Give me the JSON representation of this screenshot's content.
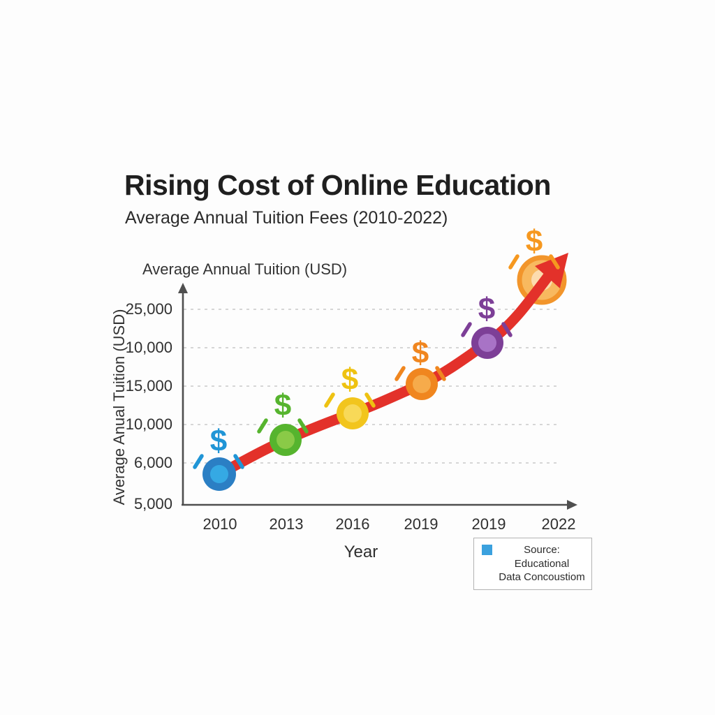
{
  "header": {
    "title": "Rising Cost of Online Education",
    "subtitle": "Average Annual Tuition Fees (2010-2022)"
  },
  "chart_data": {
    "type": "line",
    "title": "Rising Cost of Online Education",
    "subtitle": "Average Annual Tuition Fees (2010-2022)",
    "top_axis_label": "Average Annual Tuition (USD)",
    "ylabel": "Average Anual Tuition (USD)",
    "xlabel": "Year",
    "x_tick_labels": [
      "2010",
      "2013",
      "2016",
      "2019",
      "2019",
      "2022"
    ],
    "y_tick_labels_top_to_bottom": [
      "25,000",
      "10,000",
      "15,000",
      "10,000",
      "6,000",
      "5,000"
    ],
    "grid": "horizontal-dashed",
    "legend_position": "bottom-right",
    "marker_symbol": "$",
    "series": [
      {
        "name": "Average Annual Tuition (USD)",
        "categories": [
          "2010",
          "2013",
          "2016",
          "2019",
          "2019",
          "2022"
        ],
        "values_est_usd": [
          5700,
          9500,
          12000,
          15200,
          20000,
          28000
        ]
      }
    ],
    "points": [
      {
        "year": "2010",
        "marker_outer": "#2b7fc4",
        "marker_inner": "#35a9e4",
        "dollar_color": "#2095d6"
      },
      {
        "year": "2013",
        "marker_outer": "#56b42e",
        "marker_inner": "#8aca47",
        "dollar_color": "#56b42e"
      },
      {
        "year": "2016",
        "marker_outer": "#f2c51d",
        "marker_inner": "#f8d958",
        "dollar_color": "#eec211"
      },
      {
        "year": "2019",
        "marker_outer": "#f0861f",
        "marker_inner": "#f6ab4b",
        "dollar_color": "#f0861f"
      },
      {
        "year": "2019",
        "marker_outer": "#7d3f97",
        "marker_inner": "#a873c6",
        "dollar_color": "#7d3f97"
      },
      {
        "year": "2022",
        "marker_outer": "#f2952b",
        "marker_inner": "#fcdcae",
        "marker_fill": "#f8b95f",
        "dollar_color": "#f6981f",
        "style": "large-ring"
      }
    ],
    "colors": {
      "line": "#e3312a",
      "axis": "#4f4f4f",
      "grid": "#c9c9c9",
      "text": "#2f2f2f"
    },
    "legend": {
      "swatch_color": "#3ba1de",
      "lines": [
        "Source: Educational",
        "Data Concoustiom"
      ]
    }
  }
}
